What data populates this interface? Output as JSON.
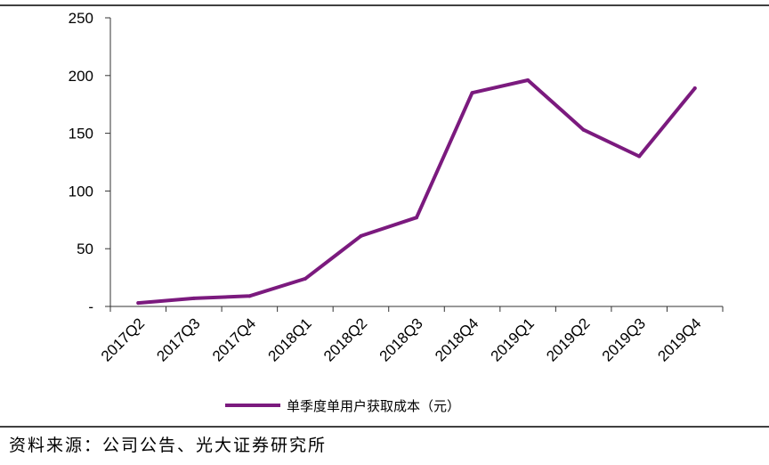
{
  "chart_data": {
    "type": "line",
    "categories": [
      "2017Q2",
      "2017Q3",
      "2017Q4",
      "2018Q1",
      "2018Q2",
      "2018Q3",
      "2018Q4",
      "2019Q1",
      "2019Q2",
      "2019Q3",
      "2019Q4"
    ],
    "series": [
      {
        "name": "单季度单用户获取成本（元）",
        "values": [
          3,
          7,
          9,
          24,
          61,
          77,
          185,
          196,
          153,
          130,
          189
        ]
      }
    ],
    "yticks": [
      "-",
      "50",
      "100",
      "150",
      "200",
      "250"
    ],
    "ylim": [
      0,
      250
    ],
    "grid": false,
    "legend_position": "bottom",
    "line_color": "#7B1A7E"
  },
  "source": "资料来源：公司公告、光大证券研究所"
}
